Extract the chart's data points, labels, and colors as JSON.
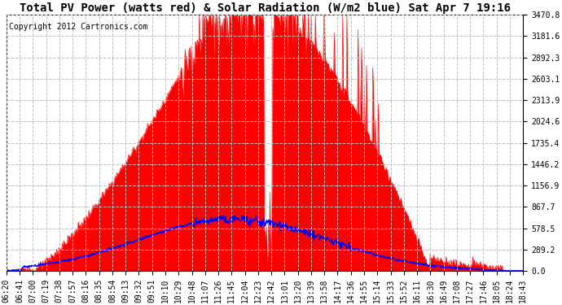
{
  "title": "Total PV Power (watts red) & Solar Radiation (W/m2 blue) Sat Apr 7 19:16",
  "copyright_text": "Copyright 2012 Cartronics.com",
  "background_color": "#ffffff",
  "plot_bg_color": "#ffffff",
  "y_ticks": [
    0.0,
    289.2,
    578.5,
    867.7,
    1156.9,
    1446.2,
    1735.4,
    2024.6,
    2313.9,
    2603.1,
    2892.3,
    3181.6,
    3470.8
  ],
  "y_max": 3470.8,
  "x_labels": [
    "06:20",
    "06:41",
    "07:00",
    "07:19",
    "07:38",
    "07:57",
    "08:16",
    "08:35",
    "08:54",
    "09:13",
    "09:32",
    "09:51",
    "10:10",
    "10:29",
    "10:48",
    "11:07",
    "11:26",
    "11:45",
    "12:04",
    "12:23",
    "12:42",
    "13:01",
    "13:20",
    "13:39",
    "13:58",
    "14:17",
    "14:36",
    "14:55",
    "15:14",
    "15:33",
    "15:52",
    "16:11",
    "16:30",
    "16:49",
    "17:08",
    "17:27",
    "17:46",
    "18:05",
    "18:24",
    "18:43"
  ],
  "pv_color": "#ff0000",
  "solar_color": "#0000ff",
  "grid_color": "#c0c0c0",
  "grid_style": "--",
  "title_fontsize": 10,
  "tick_fontsize": 7,
  "copyright_fontsize": 7
}
